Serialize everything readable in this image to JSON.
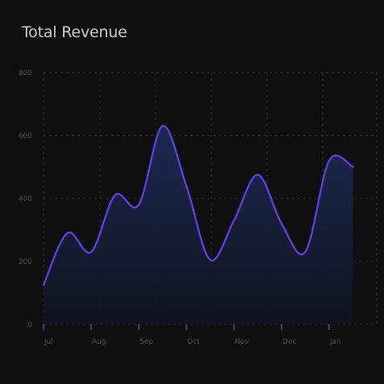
{
  "title": "Total Revenue",
  "colors": {
    "background": "#0f0f10",
    "line": "#5b3ee0",
    "area_top": "#1d2a55",
    "area_bottom": "#0f1420",
    "tick_mark": "#3e6fb8"
  },
  "chart_data": {
    "type": "area",
    "title": "Total Revenue",
    "xlabel": "",
    "ylabel": "",
    "x": [
      "Jul",
      "",
      "Aug",
      "",
      "Sep",
      "",
      "Oct",
      "",
      "Nov",
      "",
      "Dec",
      "",
      "Jan",
      ""
    ],
    "categories": [
      "Jul",
      "Aug",
      "Sep",
      "Oct",
      "Nov",
      "Dec",
      "Jan"
    ],
    "series": [
      {
        "values": [
          125,
          290,
          230,
          410,
          380,
          630,
          440,
          205,
          330,
          475,
          320,
          230,
          520,
          500
        ]
      }
    ],
    "yticks": [
      0,
      200,
      400,
      600,
      800
    ],
    "ylim": [
      0,
      800
    ],
    "grid": true,
    "curve": "smooth"
  }
}
